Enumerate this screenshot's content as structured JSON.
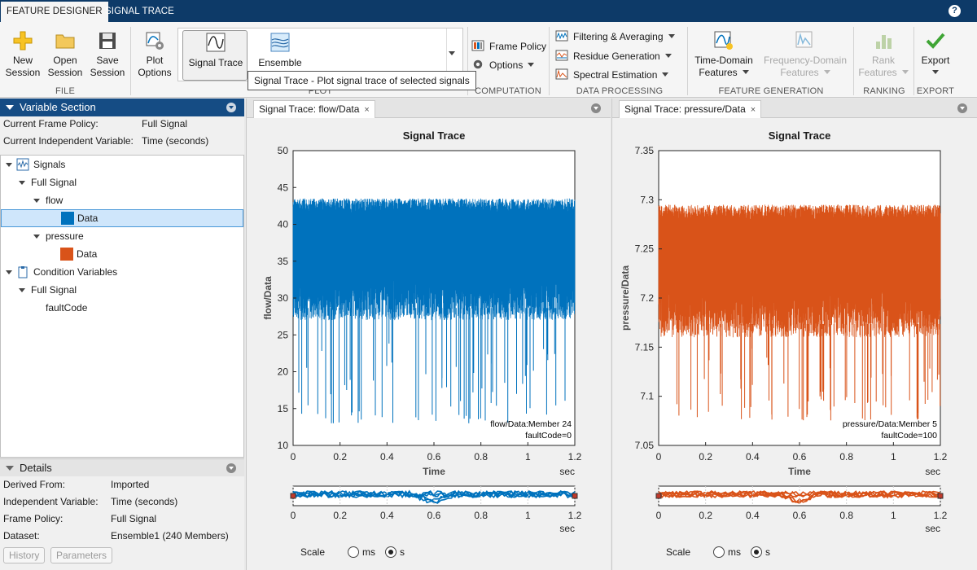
{
  "top_tabs": [
    {
      "label": "FEATURE DESIGNER",
      "active": true
    },
    {
      "label": "SIGNAL TRACE",
      "active": false
    }
  ],
  "help_label": "?",
  "ribbon": {
    "file": {
      "label": "FILE",
      "new": {
        "l1": "New",
        "l2": "Session"
      },
      "open": {
        "l1": "Open",
        "l2": "Session"
      },
      "save": {
        "l1": "Save",
        "l2": "Session"
      }
    },
    "plot": {
      "label": "PLOT",
      "options": {
        "l1": "Plot",
        "l2": "Options"
      },
      "gallery": {
        "signal_trace": "Signal Trace",
        "ensemble": "Ensemble"
      }
    },
    "computation": {
      "label": "COMPUTATION",
      "frame_policy": "Frame Policy",
      "options": "Options"
    },
    "data_processing": {
      "label": "DATA PROCESSING",
      "filtering": "Filtering & Averaging",
      "residue": "Residue Generation",
      "spectral": "Spectral Estimation"
    },
    "feature_generation": {
      "label": "FEATURE GENERATION",
      "time_domain": {
        "l1": "Time-Domain",
        "l2": "Features"
      },
      "freq_domain": {
        "l1": "Frequency-Domain",
        "l2": "Features"
      }
    },
    "ranking": {
      "label": "RANKING",
      "rank": {
        "l1": "Rank",
        "l2": "Features"
      }
    },
    "export": {
      "label": "EXPORT",
      "btn": "Export"
    },
    "tooltip": "Signal Trace - Plot signal trace of selected signals"
  },
  "variable_section": {
    "title": "Variable Section",
    "frame_policy_label": "Current Frame Policy:",
    "frame_policy_value": "Full Signal",
    "indep_var_label": "Current Independent Variable:",
    "indep_var_value": "Time (seconds)",
    "tree": {
      "signals": "Signals",
      "full_signal": "Full Signal",
      "flow": "flow",
      "flow_data": "Data",
      "pressure": "pressure",
      "pressure_data": "Data",
      "condition_variables": "Condition Variables",
      "cv_full_signal": "Full Signal",
      "fault_code": "faultCode"
    }
  },
  "details": {
    "title": "Details",
    "rows": [
      {
        "label": "Derived From:",
        "value": "Imported"
      },
      {
        "label": "Independent Variable:",
        "value": "Time (seconds)"
      },
      {
        "label": "Frame Policy:",
        "value": "Full Signal"
      },
      {
        "label": "Dataset:",
        "value": "Ensemble1 (240 Members)"
      }
    ],
    "history_btn": "History",
    "parameters_btn": "Parameters"
  },
  "colors": {
    "flow": "#0072bd",
    "pressure": "#d95319",
    "header": "#154c84",
    "titlebar": "#0d3a68"
  },
  "plots": [
    {
      "tab": "Signal Trace: flow/Data",
      "close": "×",
      "chart_data": {
        "type": "line",
        "title": "Signal Trace",
        "xlabel": "Time",
        "xunit": "sec",
        "ylabel": "flow/Data",
        "xlim": [
          0,
          1.2
        ],
        "ylim": [
          10,
          50
        ],
        "x_ticks": [
          "0",
          "0.2",
          "0.4",
          "0.6",
          "0.8",
          "1",
          "1.2"
        ],
        "y_ticks": [
          "10",
          "15",
          "20",
          "25",
          "30",
          "35",
          "40",
          "45",
          "50"
        ],
        "series": [
          {
            "name": "flow/Data:Member 24",
            "band_low": 27,
            "band_high": 43.5,
            "spike_min": 13,
            "color": "#0072bd"
          }
        ],
        "annotation": [
          "flow/Data:Member 24",
          "faultCode=0"
        ]
      },
      "overview": {
        "x_ticks": [
          "0",
          "0.2",
          "0.4",
          "0.6",
          "0.8",
          "1",
          "1.2"
        ],
        "xunit": "sec"
      },
      "scale": {
        "label": "Scale",
        "options": [
          "ms",
          "s"
        ],
        "selected": "s"
      }
    },
    {
      "tab": "Signal Trace: pressure/Data",
      "close": "×",
      "chart_data": {
        "type": "line",
        "title": "Signal Trace",
        "xlabel": "Time",
        "xunit": "sec",
        "ylabel": "pressure/Data",
        "xlim": [
          0,
          1.2
        ],
        "ylim": [
          7.05,
          7.35
        ],
        "x_ticks": [
          "0",
          "0.2",
          "0.4",
          "0.6",
          "0.8",
          "1",
          "1.2"
        ],
        "y_ticks": [
          "7.05",
          "7.1",
          "7.15",
          "7.2",
          "7.25",
          "7.3",
          "7.35"
        ],
        "series": [
          {
            "name": "pressure/Data:Member 5",
            "band_low": 7.16,
            "band_high": 7.295,
            "spike_min": 7.075,
            "color": "#d95319"
          }
        ],
        "annotation": [
          "pressure/Data:Member 5",
          "faultCode=100"
        ]
      },
      "overview": {
        "x_ticks": [
          "0",
          "0.2",
          "0.4",
          "0.6",
          "0.8",
          "1",
          "1.2"
        ],
        "xunit": "sec"
      },
      "scale": {
        "label": "Scale",
        "options": [
          "ms",
          "s"
        ],
        "selected": "s"
      }
    }
  ]
}
